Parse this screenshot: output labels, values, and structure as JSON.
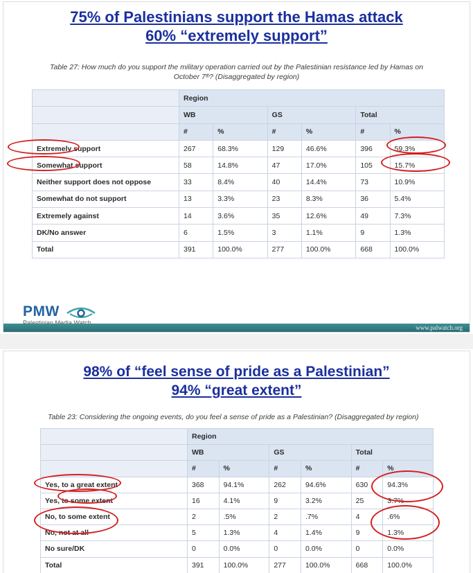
{
  "panel1": {
    "headline_line1": "75% of Palestinians support the Hamas attack",
    "headline_line2": "60% “extremely support”",
    "caption_line1": "Table 27: How much do you support the military operation carried out by the Palestinian resistance led by Hamas on",
    "caption_line2": "October 7ᵗʰ? (Disaggregated by region)",
    "table": {
      "region_label": "Region",
      "groups": [
        "WB",
        "GS",
        "Total"
      ],
      "subheaders": [
        "#",
        "%",
        "#",
        "%",
        "#",
        "%"
      ],
      "rows": [
        {
          "label": "Extremely support",
          "values": [
            "267",
            "68.3%",
            "129",
            "46.6%",
            "396",
            "59.3%"
          ]
        },
        {
          "label": "Somewhat support",
          "values": [
            "58",
            "14.8%",
            "47",
            "17.0%",
            "105",
            "15.7%"
          ]
        },
        {
          "label": "Neither support does not oppose",
          "values": [
            "33",
            "8.4%",
            "40",
            "14.4%",
            "73",
            "10.9%"
          ]
        },
        {
          "label": "Somewhat do not support",
          "values": [
            "13",
            "3.3%",
            "23",
            "8.3%",
            "36",
            "5.4%"
          ]
        },
        {
          "label": "Extremely against",
          "values": [
            "14",
            "3.6%",
            "35",
            "12.6%",
            "49",
            "7.3%"
          ]
        },
        {
          "label": "DK/No answer",
          "values": [
            "6",
            "1.5%",
            "3",
            "1.1%",
            "9",
            "1.3%"
          ]
        },
        {
          "label": "Total",
          "values": [
            "391",
            "100.0%",
            "277",
            "100.0%",
            "668",
            "100.0%"
          ]
        }
      ]
    },
    "logo_text": "PMW",
    "logo_subtitle": "Palestinian Media Watch",
    "footer_url": "www.palwatch.org"
  },
  "panel2": {
    "headline_line1": "98% of “feel sense of pride as a Palestinian”",
    "headline_line2": "94% “great extent”",
    "caption": "Table 23: Considering the ongoing events, do you feel a sense of pride as a Palestinian? (Disaggregated by region)",
    "table": {
      "region_label": "Region",
      "groups": [
        "WB",
        "GS",
        "Total"
      ],
      "subheaders": [
        "#",
        "%",
        "#",
        "%",
        "#",
        "%"
      ],
      "rows": [
        {
          "label": "Yes, to a great extent",
          "values": [
            "368",
            "94.1%",
            "262",
            "94.6%",
            "630",
            "94.3%"
          ]
        },
        {
          "label": "Yes, to some extent",
          "values": [
            "16",
            "4.1%",
            "9",
            "3.2%",
            "25",
            "3.7%"
          ]
        },
        {
          "label": "No, to some extent",
          "values": [
            "2",
            ".5%",
            "2",
            ".7%",
            "4",
            ".6%"
          ]
        },
        {
          "label": "No, not at all",
          "values": [
            "5",
            "1.3%",
            "4",
            "1.4%",
            "9",
            "1.3%"
          ]
        },
        {
          "label": "No sure/DK",
          "values": [
            "0",
            "0.0%",
            "0",
            "0.0%",
            "0",
            "0.0%"
          ]
        },
        {
          "label": "Total",
          "values": [
            "391",
            "100.0%",
            "277",
            "100.0%",
            "668",
            "100.0%"
          ]
        }
      ]
    }
  },
  "colors": {
    "headline": "#1a2f9e",
    "annotation_circle": "#d31f1f",
    "header_fill": "#dbe4f1",
    "footer_band": "#3e8f96"
  }
}
